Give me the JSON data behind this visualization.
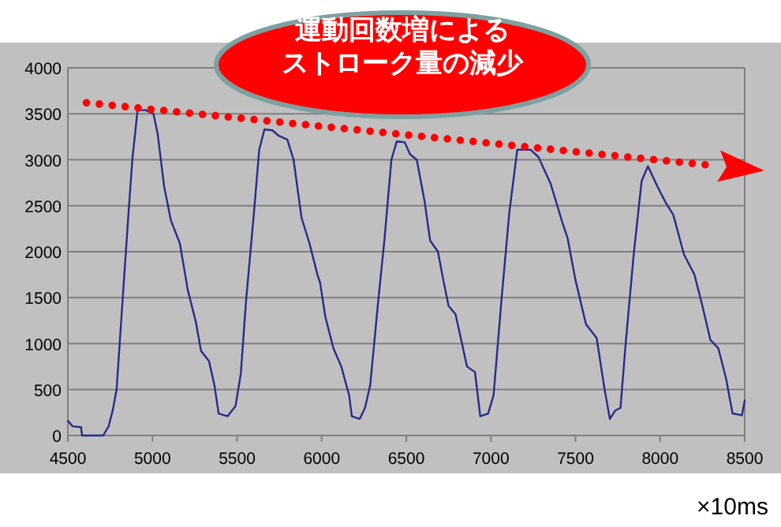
{
  "chart_data": {
    "type": "line",
    "xlabel": "×10ms",
    "annotations": [
      "運動回数増による",
      "ストローク量の減少"
    ],
    "series": [
      {
        "color": "#2a2a8c",
        "line_style": "solid",
        "x": [
          4500,
          4528,
          4578,
          4584,
          4709,
          4741,
          4766,
          4788,
          4819,
          4859,
          4881,
          4912,
          4959,
          5006,
          5031,
          5069,
          5109,
          5162,
          5209,
          5256,
          5287,
          5334,
          5366,
          5391,
          5444,
          5491,
          5522,
          5553,
          5600,
          5631,
          5662,
          5709,
          5747,
          5797,
          5834,
          5881,
          5928,
          5975,
          5991,
          6022,
          6069,
          6116,
          6162,
          6178,
          6225,
          6256,
          6287,
          6334,
          6372,
          6412,
          6444,
          6491,
          6522,
          6562,
          6609,
          6641,
          6687,
          6719,
          6750,
          6791,
          6828,
          6859,
          6906,
          6937,
          6984,
          7016,
          7062,
          7109,
          7156,
          7234,
          7281,
          7353,
          7422,
          7453,
          7500,
          7562,
          7625,
          7672,
          7703,
          7734,
          7766,
          7797,
          7844,
          7891,
          7928,
          7984,
          8031,
          8078,
          8141,
          8203,
          8250,
          8297,
          8344,
          8391,
          8428,
          8484,
          8500
        ],
        "values": [
          160,
          100,
          90,
          0,
          0,
          100,
          280,
          500,
          1350,
          2430,
          3000,
          3540,
          3540,
          3500,
          3280,
          2710,
          2340,
          2090,
          1580,
          1240,
          920,
          810,
          550,
          240,
          210,
          320,
          670,
          1460,
          2430,
          3110,
          3330,
          3320,
          3260,
          3220,
          3000,
          2370,
          2090,
          1750,
          1660,
          1290,
          950,
          750,
          440,
          210,
          180,
          300,
          550,
          1460,
          2150,
          3000,
          3200,
          3190,
          3060,
          3000,
          2540,
          2120,
          2000,
          1690,
          1410,
          1320,
          1010,
          750,
          690,
          210,
          240,
          440,
          1460,
          2430,
          3110,
          3110,
          3030,
          2740,
          2320,
          2150,
          1690,
          1210,
          1060,
          500,
          180,
          270,
          300,
          1010,
          1970,
          2770,
          2930,
          2710,
          2540,
          2400,
          1970,
          1750,
          1410,
          1040,
          950,
          610,
          240,
          220,
          380
        ]
      },
      {
        "color": "#ff0000",
        "line_style": "dotted",
        "x": [
          4610,
          8300
        ],
        "values": [
          3620,
          2940
        ]
      }
    ],
    "marker": "none",
    "xlim": [
      4500,
      8500
    ],
    "xticks": [
      4500,
      5000,
      5500,
      6000,
      6500,
      7000,
      7500,
      8000,
      8500
    ],
    "ylim": [
      0,
      4000
    ],
    "yticks": [
      0,
      500,
      1000,
      1500,
      2000,
      2500,
      3000,
      3500,
      4000
    ],
    "grid": "y"
  }
}
